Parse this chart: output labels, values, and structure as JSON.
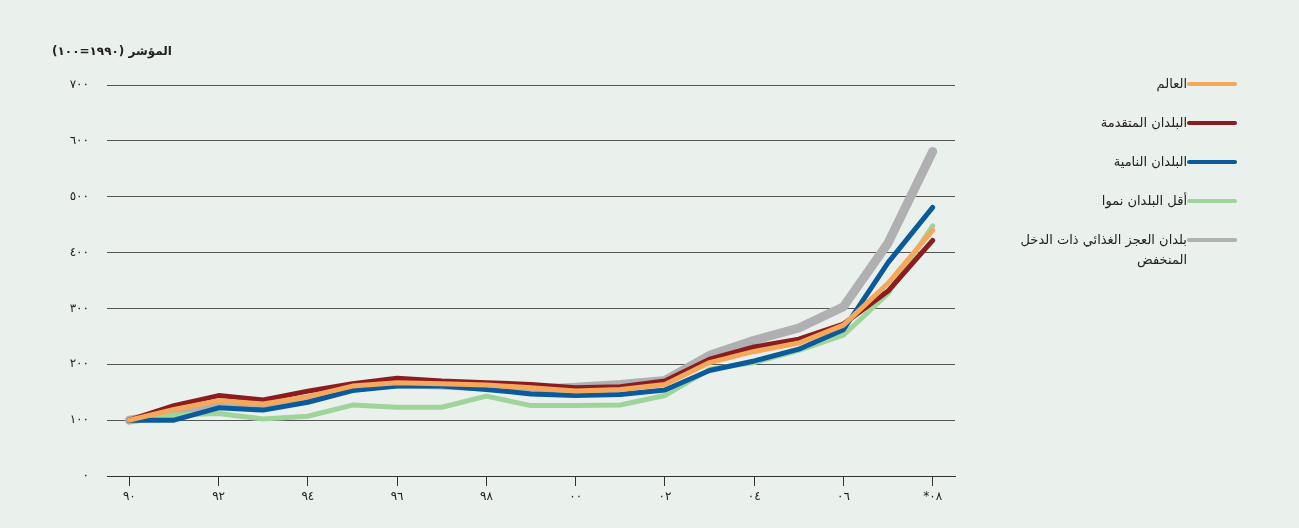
{
  "chart_data": {
    "type": "line",
    "ylabel": "المؤشر (١٩٩٠=١٠٠)",
    "categories": [
      "٩٠",
      null,
      "٩٢",
      null,
      "٩٤",
      null,
      "٩٦",
      null,
      "٩٨",
      null,
      "٠٠",
      null,
      "٠٢",
      null,
      "٠٤",
      null,
      "٠٦",
      null,
      "*٠٨"
    ],
    "ylim": [
      0,
      700
    ],
    "yticks": [
      {
        "value": 0,
        "label": "٠"
      },
      {
        "value": 100,
        "label": "١٠٠"
      },
      {
        "value": 200,
        "label": "٢٠٠"
      },
      {
        "value": 300,
        "label": "٣٠٠"
      },
      {
        "value": 400,
        "label": "٤٠٠"
      },
      {
        "value": 500,
        "label": "٥٠٠"
      },
      {
        "value": 600,
        "label": "٦٠٠"
      },
      {
        "value": 700,
        "label": "٧٠٠"
      }
    ],
    "grid": "y",
    "legend": "right",
    "marker": "none",
    "line_style": "solid",
    "series": [
      {
        "name": "العالم",
        "color": "#f5a85a",
        "values": [
          100,
          119,
          135,
          129,
          142,
          161,
          167,
          165,
          163,
          158,
          152,
          155,
          164,
          203,
          223,
          238,
          270,
          345,
          440
        ]
      },
      {
        "name": "البلدان المتقدمة",
        "color": "#8b1c1f",
        "values": [
          100,
          126,
          144,
          136,
          152,
          165,
          175,
          170,
          167,
          164,
          158,
          160,
          170,
          209,
          231,
          245,
          272,
          331,
          422
        ]
      },
      {
        "name": "البلدان النامية",
        "color": "#0a5a9c",
        "values": [
          100,
          100,
          122,
          118,
          132,
          153,
          161,
          161,
          155,
          147,
          144,
          146,
          154,
          189,
          206,
          227,
          262,
          382,
          481
        ]
      },
      {
        "name": "أقل البلدان نموا",
        "color": "#9fd49a",
        "values": [
          100,
          109,
          112,
          102,
          107,
          127,
          123,
          123,
          143,
          126,
          126,
          127,
          144,
          191,
          203,
          225,
          252,
          327,
          448
        ]
      },
      {
        "name": "بلدان العجز الغذائي ذات الدخل المنخفض",
        "color": "#b0b0b2",
        "values": [
          100,
          112,
          127,
          124,
          138,
          158,
          165,
          163,
          160,
          155,
          159,
          164,
          171,
          216,
          243,
          265,
          303,
          417,
          581
        ]
      }
    ]
  }
}
